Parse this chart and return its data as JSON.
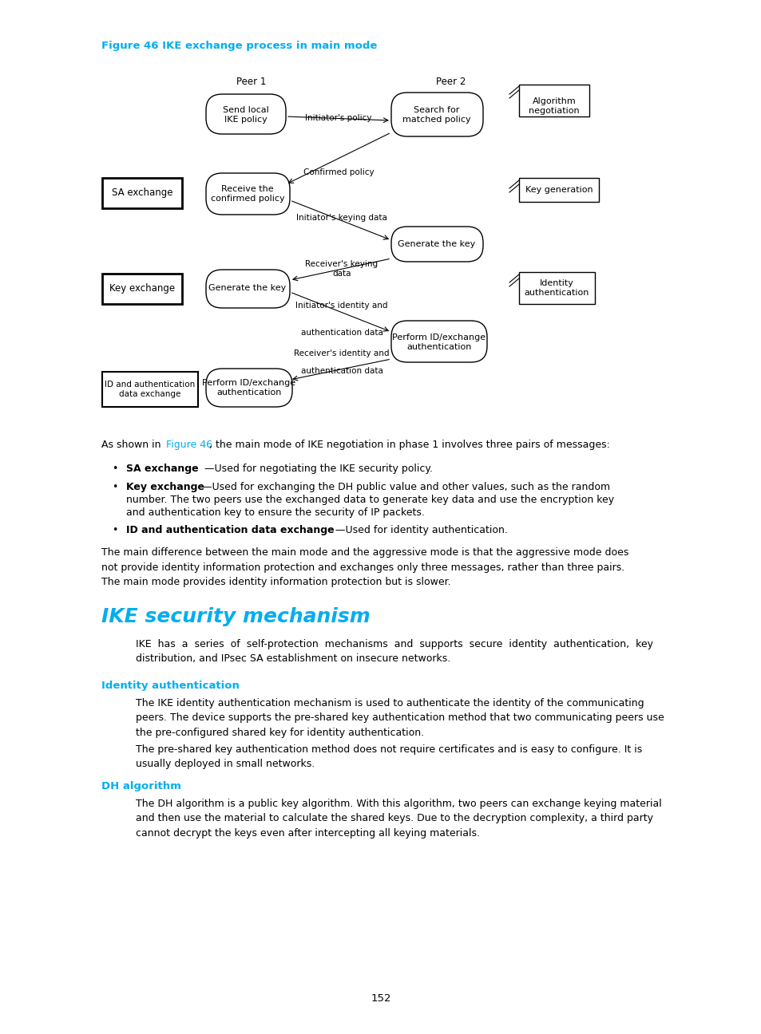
{
  "figure_title": "Figure 46 IKE exchange process in main mode",
  "title_color": "#00AEEF",
  "page_number": "152",
  "bg_color": "#ffffff",
  "section_title": "IKE security mechanism",
  "section_title_color": "#00AEEF",
  "subsection1_title": "Identity authentication",
  "subsection2_title": "DH algorithm",
  "subsection_color": "#00AEEF"
}
